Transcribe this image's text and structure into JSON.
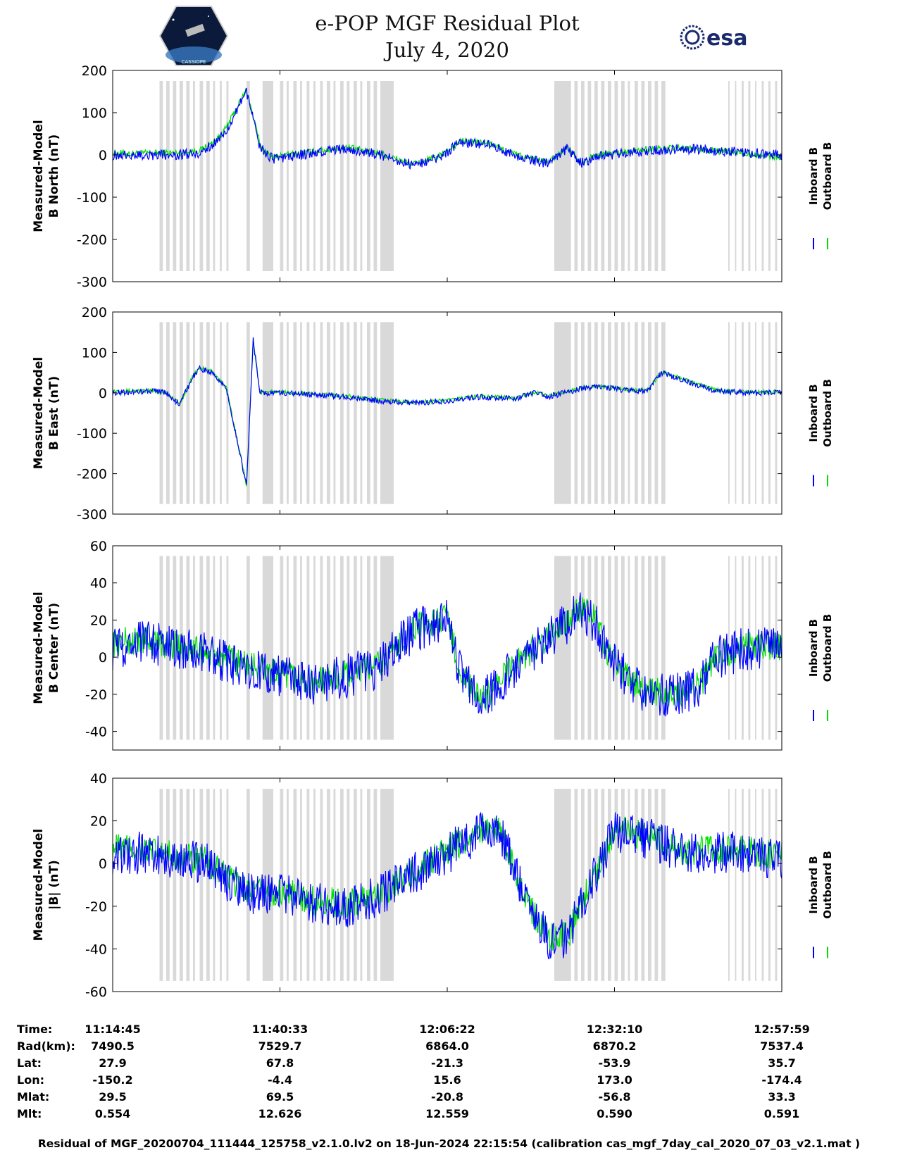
{
  "header": {
    "title_line1": "e-POP MGF Residual Plot",
    "title_line2": "July 4, 2020",
    "logo_left_text": "CASSIOPE",
    "logo_right_text": "esa"
  },
  "colors": {
    "inboard": "#0000ff",
    "outboard": "#00e000",
    "shade": "#d9d9d9"
  },
  "chart_data": [
    {
      "type": "line",
      "ylabel_line1": "Measured-Model",
      "ylabel_line2": "B North (nT)",
      "ylim": [
        -300,
        200
      ],
      "yticks": [
        200,
        100,
        0,
        -100,
        -200,
        -300
      ],
      "legend": [
        "Inboard B",
        "Outboard B"
      ],
      "series": [
        {
          "name": "Inboard B",
          "x": [
            0,
            0.03,
            0.06,
            0.1,
            0.13,
            0.155,
            0.17,
            0.2,
            0.22,
            0.23,
            0.24,
            0.26,
            0.3,
            0.35,
            0.4,
            0.45,
            0.49,
            0.52,
            0.56,
            0.6,
            0.62,
            0.65,
            0.66,
            0.68,
            0.7,
            0.72,
            0.74,
            0.8,
            0.85,
            0.9,
            0.95,
            1.0
          ],
          "y": [
            0,
            0,
            0,
            0,
            5,
            30,
            60,
            150,
            20,
            0,
            -10,
            -5,
            5,
            15,
            0,
            -25,
            -5,
            30,
            25,
            0,
            -10,
            -20,
            -10,
            15,
            -20,
            -5,
            0,
            10,
            15,
            10,
            5,
            0
          ],
          "noise": 12
        },
        {
          "name": "Outboard B",
          "x": [
            0,
            0.03,
            0.06,
            0.1,
            0.13,
            0.155,
            0.17,
            0.2,
            0.22,
            0.23,
            0.24,
            0.26,
            0.3,
            0.35,
            0.4,
            0.45,
            0.49,
            0.52,
            0.56,
            0.6,
            0.62,
            0.65,
            0.66,
            0.68,
            0.7,
            0.72,
            0.74,
            0.8,
            0.85,
            0.9,
            0.95,
            1.0
          ],
          "y": [
            5,
            3,
            5,
            5,
            10,
            35,
            65,
            155,
            25,
            3,
            -5,
            0,
            8,
            18,
            3,
            -22,
            -2,
            33,
            28,
            3,
            -7,
            -17,
            -7,
            18,
            -17,
            -2,
            3,
            13,
            16,
            10,
            3,
            -5
          ],
          "noise": 8
        }
      ]
    },
    {
      "type": "line",
      "ylabel_line1": "Measured-Model",
      "ylabel_line2": "B East (nT)",
      "ylim": [
        -300,
        200
      ],
      "yticks": [
        200,
        100,
        0,
        -100,
        -200,
        -300
      ],
      "legend": [
        "Inboard B",
        "Outboard B"
      ],
      "series": [
        {
          "name": "Inboard B",
          "x": [
            0,
            0.06,
            0.08,
            0.1,
            0.12,
            0.13,
            0.15,
            0.17,
            0.2,
            0.21,
            0.22,
            0.25,
            0.3,
            0.35,
            0.4,
            0.45,
            0.5,
            0.55,
            0.6,
            0.63,
            0.65,
            0.7,
            0.73,
            0.77,
            0.8,
            0.82,
            0.9,
            0.95,
            1.0
          ],
          "y": [
            0,
            5,
            0,
            -30,
            40,
            60,
            50,
            10,
            -230,
            130,
            0,
            0,
            -5,
            -10,
            -20,
            -25,
            -20,
            -10,
            -15,
            0,
            -10,
            10,
            15,
            5,
            5,
            50,
            5,
            0,
            0
          ],
          "noise": 7
        },
        {
          "name": "Outboard B",
          "x": [
            0,
            0.06,
            0.08,
            0.1,
            0.12,
            0.13,
            0.15,
            0.17,
            0.2,
            0.21,
            0.22,
            0.25,
            0.3,
            0.35,
            0.4,
            0.45,
            0.5,
            0.55,
            0.6,
            0.63,
            0.65,
            0.7,
            0.73,
            0.77,
            0.8,
            0.82,
            0.9,
            0.95,
            1.0
          ],
          "y": [
            5,
            5,
            0,
            -28,
            42,
            62,
            52,
            12,
            -228,
            132,
            2,
            2,
            -3,
            -8,
            -18,
            -23,
            -18,
            -8,
            -13,
            2,
            -8,
            12,
            17,
            7,
            7,
            52,
            7,
            2,
            2
          ],
          "noise": 5
        }
      ]
    },
    {
      "type": "line",
      "ylabel_line1": "Measured-Model",
      "ylabel_line2": "B Center (nT)",
      "ylim": [
        -50,
        60
      ],
      "yticks": [
        60,
        40,
        20,
        0,
        -20,
        -40
      ],
      "legend": [
        "Inboard B",
        "Outboard B"
      ],
      "series": [
        {
          "name": "Inboard B",
          "x": [
            0,
            0.05,
            0.1,
            0.15,
            0.2,
            0.25,
            0.3,
            0.35,
            0.4,
            0.45,
            0.5,
            0.52,
            0.55,
            0.6,
            0.65,
            0.7,
            0.72,
            0.74,
            0.78,
            0.8,
            0.85,
            0.88,
            0.9,
            0.95,
            1.0
          ],
          "y": [
            5,
            8,
            5,
            0,
            -5,
            -10,
            -15,
            -10,
            -5,
            15,
            20,
            -10,
            -25,
            -5,
            10,
            25,
            20,
            0,
            -15,
            -20,
            -20,
            -15,
            0,
            5,
            5
          ],
          "noise": 12
        },
        {
          "name": "Outboard B",
          "x": [
            0,
            0.05,
            0.1,
            0.15,
            0.2,
            0.25,
            0.3,
            0.35,
            0.4,
            0.45,
            0.5,
            0.52,
            0.55,
            0.6,
            0.65,
            0.7,
            0.72,
            0.74,
            0.78,
            0.8,
            0.85,
            0.88,
            0.9,
            0.95,
            1.0
          ],
          "y": [
            8,
            9,
            6,
            1,
            -4,
            -9,
            -14,
            -9,
            -4,
            16,
            21,
            -9,
            -24,
            -4,
            11,
            26,
            21,
            1,
            -14,
            -19,
            -19,
            -14,
            1,
            6,
            6
          ],
          "noise": 8
        }
      ]
    },
    {
      "type": "line",
      "ylabel_line1": "Measured-Model",
      "ylabel_line2": "|B| (nT)",
      "ylim": [
        -60,
        40
      ],
      "yticks": [
        40,
        20,
        0,
        -20,
        -40,
        -60
      ],
      "legend": [
        "Inboard B",
        "Outboard B"
      ],
      "series": [
        {
          "name": "Inboard B",
          "x": [
            0,
            0.05,
            0.1,
            0.14,
            0.18,
            0.22,
            0.26,
            0.3,
            0.35,
            0.4,
            0.45,
            0.5,
            0.55,
            0.58,
            0.62,
            0.65,
            0.68,
            0.7,
            0.75,
            0.8,
            0.85,
            0.9,
            0.95,
            1.0
          ],
          "y": [
            5,
            5,
            2,
            0,
            -10,
            -15,
            -15,
            -18,
            -20,
            -15,
            -5,
            5,
            15,
            15,
            -20,
            -35,
            -35,
            -20,
            15,
            12,
            5,
            5,
            5,
            2
          ],
          "noise": 10
        },
        {
          "name": "Outboard B",
          "x": [
            0,
            0.05,
            0.1,
            0.14,
            0.18,
            0.22,
            0.26,
            0.3,
            0.35,
            0.4,
            0.45,
            0.5,
            0.55,
            0.58,
            0.62,
            0.65,
            0.68,
            0.7,
            0.75,
            0.8,
            0.85,
            0.9,
            0.95,
            1.0
          ],
          "y": [
            8,
            6,
            3,
            1,
            -9,
            -14,
            -14,
            -17,
            -19,
            -14,
            -4,
            6,
            16,
            16,
            -19,
            -34,
            -34,
            -19,
            16,
            13,
            6,
            6,
            6,
            3
          ],
          "noise": 7
        }
      ]
    }
  ],
  "table": {
    "row_labels": [
      "Time:",
      "Rad(km):",
      "Lat:",
      "Lon:",
      "Mlat:",
      "Mlt:"
    ],
    "columns": [
      [
        "11:14:45",
        "7490.5",
        "27.9",
        "-150.2",
        "29.5",
        "0.554"
      ],
      [
        "11:40:33",
        "7529.7",
        "67.8",
        "-4.4",
        "69.5",
        "12.626"
      ],
      [
        "12:06:22",
        "6864.0",
        "-21.3",
        "15.6",
        "-20.8",
        "12.559"
      ],
      [
        "12:32:10",
        "6870.2",
        "-53.9",
        "173.0",
        "-56.8",
        "0.590"
      ],
      [
        "12:57:59",
        "7537.4",
        "35.7",
        "-174.4",
        "33.3",
        "0.591"
      ]
    ]
  },
  "footer": "Residual of MGF_20200704_111444_125758_v2.1.0.lv2 on 18-Jun-2024 22:15:54 (calibration cas_mgf_7day_cal_2020_07_03_v2.1.mat )"
}
